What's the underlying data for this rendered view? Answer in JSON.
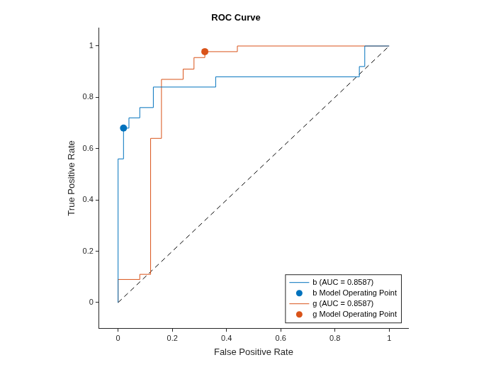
{
  "chart_data": {
    "type": "line",
    "title": "ROC Curve",
    "x_label": "False Positive Rate",
    "y_label": "True Positive Rate",
    "xlim": [
      -0.07,
      1.07
    ],
    "ylim": [
      -0.1,
      1.07
    ],
    "xticks": [
      0,
      0.2,
      0.4,
      0.6,
      0.8,
      1
    ],
    "yticks": [
      0,
      0.2,
      0.4,
      0.6,
      0.8,
      1
    ],
    "grid": false,
    "legend": "lower right",
    "series": [
      {
        "name": "b (AUC = 0.8587)",
        "type": "line",
        "color": "#0072BD",
        "line_style": "solid",
        "x": [
          0,
          0,
          0.02,
          0.02,
          0.04,
          0.04,
          0.08,
          0.08,
          0.13,
          0.13,
          0.36,
          0.36,
          0.89,
          0.89,
          0.91,
          0.91,
          1
        ],
        "values": [
          0,
          0.56,
          0.56,
          0.68,
          0.68,
          0.72,
          0.72,
          0.76,
          0.76,
          0.84,
          0.84,
          0.88,
          0.88,
          0.92,
          0.92,
          1,
          1
        ]
      },
      {
        "name": "b Model Operating Point",
        "type": "scatter",
        "color": "#0072BD",
        "marker": "circle",
        "x": [
          0.02
        ],
        "values": [
          0.68
        ]
      },
      {
        "name": "g (AUC = 0.8587)",
        "type": "line",
        "color": "#D95319",
        "line_style": "solid",
        "x": [
          0,
          0,
          0.08,
          0.08,
          0.12,
          0.12,
          0.16,
          0.16,
          0.24,
          0.24,
          0.28,
          0.28,
          0.32,
          0.32,
          0.44,
          0.44,
          1
        ],
        "values": [
          0,
          0.09,
          0.09,
          0.11,
          0.11,
          0.64,
          0.64,
          0.87,
          0.87,
          0.91,
          0.91,
          0.955,
          0.955,
          0.978,
          0.978,
          1,
          1
        ]
      },
      {
        "name": "g Model Operating Point",
        "type": "scatter",
        "color": "#D95319",
        "marker": "circle",
        "x": [
          0.32
        ],
        "values": [
          0.978
        ]
      },
      {
        "type": "line",
        "color": "#000000",
        "line_style": "dashed",
        "x": [
          0,
          1
        ],
        "values": [
          0,
          1
        ]
      }
    ]
  }
}
